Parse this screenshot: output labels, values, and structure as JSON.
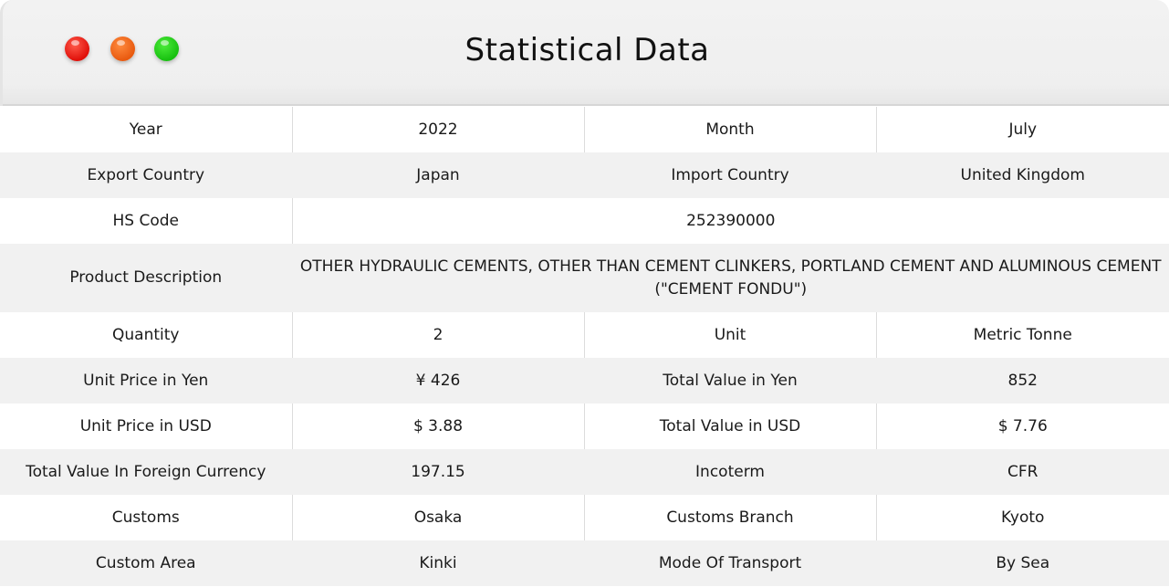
{
  "window": {
    "title": "Statistical Data",
    "controls": [
      {
        "name": "close",
        "color": "#e0100a"
      },
      {
        "name": "minimize",
        "color": "#e85a10"
      },
      {
        "name": "maximize",
        "color": "#18c010"
      }
    ]
  },
  "rows": [
    {
      "label1": "Year",
      "value1": "2022",
      "label2": "Month",
      "value2": "July"
    },
    {
      "label1": "Export Country",
      "value1": "Japan",
      "label2": "Import Country",
      "value2": "United Kingdom"
    },
    {
      "label1": "HS Code",
      "value": "252390000"
    },
    {
      "label1": "Product Description",
      "value": "OTHER HYDRAULIC CEMENTS, OTHER THAN CEMENT CLINKERS, PORTLAND CEMENT AND ALUMINOUS CEMENT (\"CEMENT FONDU\")"
    },
    {
      "label1": "Quantity",
      "value1": "2",
      "label2": "Unit",
      "value2": "Metric Tonne"
    },
    {
      "label1": "Unit Price in Yen",
      "value1": "¥ 426",
      "label2": "Total Value in Yen",
      "value2": "852"
    },
    {
      "label1": "Unit Price in USD",
      "value1": "$ 3.88",
      "label2": "Total Value in USD",
      "value2": "$ 7.76"
    },
    {
      "label1": "Total Value In Foreign Currency",
      "value1": "197.15",
      "label2": "Incoterm",
      "value2": "CFR"
    },
    {
      "label1": "Customs",
      "value1": "Osaka",
      "label2": "Customs Branch",
      "value2": "Kyoto"
    },
    {
      "label1": "Custom Area",
      "value1": "Kinki",
      "label2": "Mode Of Transport",
      "value2": "By Sea"
    }
  ]
}
